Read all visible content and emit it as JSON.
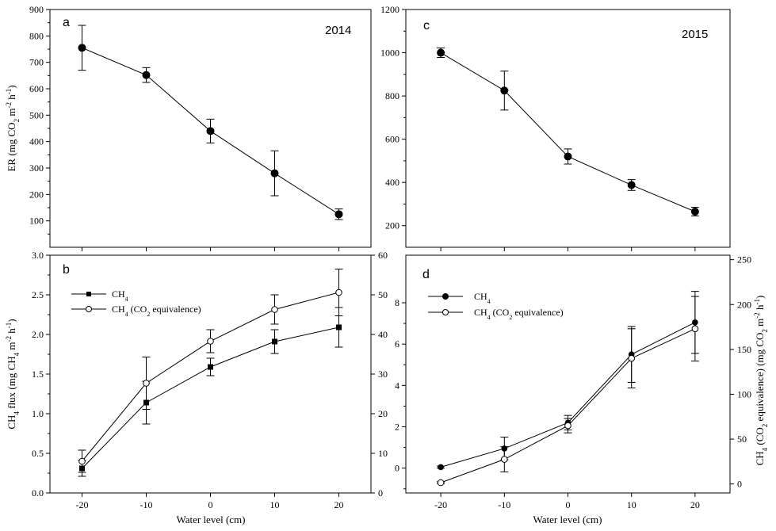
{
  "chart_data": [
    {
      "id": "a",
      "type": "line",
      "panel_label": "a",
      "annotation": "2014",
      "ylabel": "ER (mg CO2 m-2 h-1)",
      "ylabel_parts": {
        "pre": "ER (mg CO",
        "sub": "2",
        "mid": " m",
        "sup1": "-2",
        "mid2": " h",
        "sup2": "-1",
        "post": ")"
      },
      "ylim": [
        0,
        900
      ],
      "yticks": [
        100,
        200,
        300,
        400,
        500,
        600,
        700,
        800,
        900
      ],
      "x": [
        -20,
        -10,
        0,
        10,
        20
      ],
      "series": [
        {
          "name": "ER",
          "marker": "filled-circle",
          "values": [
            755,
            652,
            440,
            280,
            125
          ],
          "errors": [
            85,
            28,
            45,
            85,
            20
          ]
        }
      ]
    },
    {
      "id": "b",
      "type": "line",
      "panel_label": "b",
      "xlabel": "Water level (cm)",
      "xticks": [
        -20,
        -10,
        0,
        10,
        20
      ],
      "ylabel": "CH4 flux (mg CH4 m-2 h-1)",
      "ylabel_parts": {
        "pre": "CH",
        "sub": "4",
        "mid": " flux (mg CH",
        "sub2": "4",
        "mid2": " m",
        "sup1": "-2",
        "mid3": " h",
        "sup2": "-1",
        "post": ")"
      },
      "ylim": [
        0,
        3.0
      ],
      "yticks": [
        "0.0",
        "0.5",
        "1.0",
        "1.5",
        "2.0",
        "2.5",
        "3.0"
      ],
      "y2lim": [
        0,
        60
      ],
      "y2ticks": [
        0,
        10,
        20,
        30,
        40,
        50,
        60
      ],
      "x": [
        -20,
        -10,
        0,
        10,
        20
      ],
      "legend": [
        {
          "label_pre": "CH",
          "label_sub": "4",
          "label_post": ""
        },
        {
          "label_pre": "CH",
          "label_sub": "4",
          "label_post": " (CO",
          "label_sub2": "2",
          "label_post2": " equivalence)"
        }
      ],
      "series": [
        {
          "name": "CH4",
          "axis": "left",
          "marker": "filled-square",
          "values": [
            0.31,
            1.14,
            1.59,
            1.91,
            2.09
          ],
          "errors": [
            0.1,
            0.27,
            0.11,
            0.15,
            0.25
          ]
        },
        {
          "name": "CH4 (CO2 equivalence)",
          "axis": "right",
          "marker": "open-circle",
          "values": [
            8.0,
            27.7,
            38.3,
            46.3,
            50.6
          ],
          "errors": [
            2.8,
            6.6,
            2.9,
            3.7,
            5.9
          ]
        }
      ]
    },
    {
      "id": "c",
      "type": "line",
      "panel_label": "c",
      "annotation": "2015",
      "ylim": [
        100,
        1200
      ],
      "yticks": [
        200,
        400,
        600,
        800,
        1000,
        1200
      ],
      "x": [
        -20,
        -10,
        0,
        10,
        20
      ],
      "series": [
        {
          "name": "ER",
          "marker": "filled-circle",
          "values": [
            1000,
            825,
            520,
            388,
            265
          ],
          "errors": [
            22,
            90,
            35,
            25,
            20
          ]
        }
      ]
    },
    {
      "id": "d",
      "type": "line",
      "panel_label": "d",
      "xlabel": "Water level (cm)",
      "xticks": [
        -20,
        -10,
        0,
        10,
        20
      ],
      "ylim": [
        -1.2,
        10.3
      ],
      "yticks": [
        0,
        2,
        4,
        6,
        8
      ],
      "y2lim": [
        -10,
        255
      ],
      "y2ticks": [
        0,
        50,
        100,
        150,
        200,
        250
      ],
      "y2label_parts": {
        "pre": "CH",
        "sub": "4",
        "mid": " (CO",
        "sub2": "2",
        "mid2": " equivalence) (mg CO",
        "sub3": "2",
        "mid3": " m",
        "sup1": "-2",
        "mid4": " h",
        "sup2": "-1",
        "post": ")"
      },
      "x": [
        -20,
        -10,
        0,
        10,
        20
      ],
      "legend": [
        {
          "label_pre": "CH",
          "label_sub": "4",
          "label_post": ""
        },
        {
          "label_pre": "CH",
          "label_sub": "4",
          "label_post": " (CO",
          "label_sub2": "2",
          "label_post2": " equivalence)"
        }
      ],
      "series": [
        {
          "name": "CH4",
          "axis": "left",
          "marker": "filled-circle",
          "values": [
            0.05,
            0.95,
            2.2,
            5.5,
            7.05
          ],
          "errors": [
            0.05,
            0.55,
            0.35,
            1.35,
            1.5
          ]
        },
        {
          "name": "CH4 (CO2 equivalence)",
          "axis": "right",
          "marker": "open-circle",
          "values": [
            1.5,
            27.5,
            65.0,
            140.0,
            173.0
          ],
          "errors": [
            1.0,
            14.0,
            8.0,
            33.0,
            36.0
          ]
        }
      ]
    }
  ]
}
